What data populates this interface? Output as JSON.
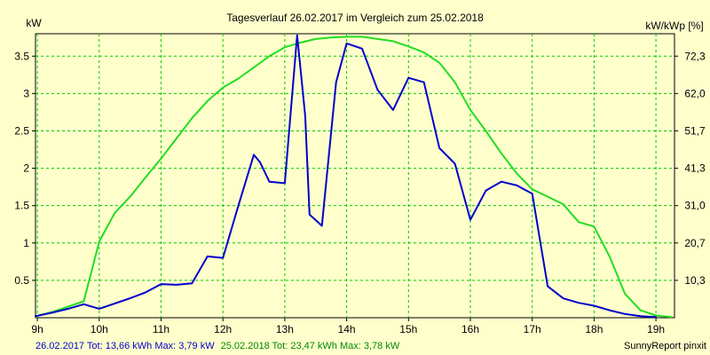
{
  "chart_data": {
    "type": "line",
    "title": "Tagesverlauf 26.02.2017 im Vergleich zum 25.02.2018",
    "ylabel_left": "kW",
    "ylabel_right": "kW/kWp [%]",
    "x_ticks": [
      "9h",
      "10h",
      "11h",
      "12h",
      "13h",
      "14h",
      "15h",
      "16h",
      "17h",
      "18h",
      "19h"
    ],
    "x_tick_hours": [
      9,
      10,
      11,
      12,
      13,
      14,
      15,
      16,
      17,
      18,
      19
    ],
    "xlim": [
      8.97,
      19.3
    ],
    "ylim": [
      0,
      3.8
    ],
    "y_ticks_left": [
      "0.5",
      "1",
      "1.5",
      "2",
      "2.5",
      "3",
      "3.5"
    ],
    "y_tick_values_left": [
      0.5,
      1,
      1.5,
      2,
      2.5,
      3,
      3.5
    ],
    "y_ticks_right": [
      "10,3",
      "20,7",
      "31,0",
      "41,3",
      "51,7",
      "62,0",
      "72,3"
    ],
    "grid": true,
    "series": [
      {
        "color": "#0000CC",
        "x": [
          8.97,
          9.25,
          9.5,
          9.75,
          10.0,
          10.25,
          10.5,
          10.75,
          11.0,
          11.25,
          11.5,
          11.75,
          12.0,
          12.25,
          12.5,
          12.6,
          12.75,
          13.0,
          13.2,
          13.33,
          13.4,
          13.6,
          13.83,
          14.0,
          14.25,
          14.5,
          14.75,
          15.0,
          15.25,
          15.5,
          15.75,
          16.0,
          16.25,
          16.5,
          16.75,
          17.0,
          17.25,
          17.5,
          17.75,
          18.0,
          18.25,
          18.5,
          18.75,
          19.0
        ],
        "y": [
          0.02,
          0.07,
          0.12,
          0.18,
          0.12,
          0.19,
          0.26,
          0.34,
          0.45,
          0.44,
          0.46,
          0.82,
          0.8,
          1.5,
          2.18,
          2.08,
          1.82,
          1.8,
          3.78,
          2.7,
          1.38,
          1.23,
          3.15,
          3.67,
          3.6,
          3.05,
          2.78,
          3.21,
          3.15,
          2.27,
          2.06,
          1.31,
          1.7,
          1.82,
          1.77,
          1.66,
          0.42,
          0.26,
          0.2,
          0.16,
          0.1,
          0.05,
          0.02,
          0.01
        ]
      },
      {
        "color": "#22DD22",
        "x": [
          8.97,
          9.25,
          9.5,
          9.75,
          10.0,
          10.25,
          10.5,
          10.75,
          11.0,
          11.25,
          11.5,
          11.75,
          12.0,
          12.25,
          12.5,
          12.75,
          13.0,
          13.25,
          13.5,
          13.75,
          14.0,
          14.25,
          14.5,
          14.75,
          15.0,
          15.25,
          15.5,
          15.75,
          16.0,
          16.25,
          16.5,
          16.75,
          17.0,
          17.25,
          17.5,
          17.75,
          18.0,
          18.25,
          18.5,
          18.75,
          19.0,
          19.25
        ],
        "y": [
          0.02,
          0.08,
          0.15,
          0.22,
          1.02,
          1.4,
          1.62,
          1.88,
          2.13,
          2.4,
          2.67,
          2.9,
          3.08,
          3.2,
          3.35,
          3.5,
          3.62,
          3.68,
          3.73,
          3.75,
          3.76,
          3.76,
          3.73,
          3.7,
          3.63,
          3.55,
          3.41,
          3.15,
          2.78,
          2.5,
          2.2,
          1.93,
          1.72,
          1.62,
          1.52,
          1.28,
          1.22,
          0.82,
          0.32,
          0.1,
          0.03,
          0.01
        ]
      }
    ]
  },
  "footer": {
    "blue_text": "26.02.2017 Tot: 13,66 kWh Max: 3,79 kW",
    "green_text": "25.02.2018 Tot: 23,47 kWh Max: 3,78 kW",
    "credit": "SunnyReport pinxit"
  }
}
